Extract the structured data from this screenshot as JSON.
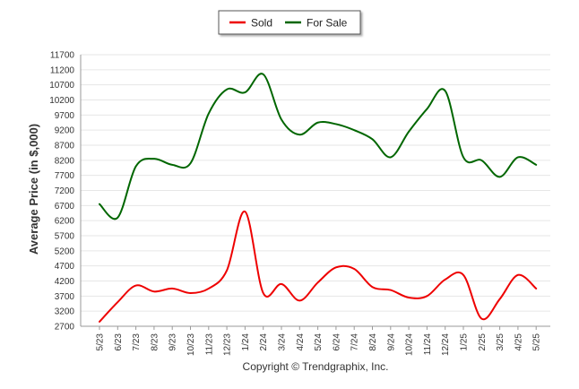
{
  "chart_data": {
    "type": "line",
    "title": "",
    "xlabel": "",
    "ylabel": "Average Price (in $,000)",
    "footer": "Copyright © Trendgraphix, Inc.",
    "legend_position": "top-center",
    "grid": true,
    "ylim": [
      2700,
      11700
    ],
    "y_ticks": [
      2700,
      3200,
      3700,
      4200,
      4700,
      5200,
      5700,
      6200,
      6700,
      7200,
      7700,
      8200,
      8700,
      9200,
      9700,
      10200,
      10700,
      11200,
      11700
    ],
    "categories": [
      "5/23",
      "6/23",
      "7/23",
      "8/23",
      "9/23",
      "10/23",
      "11/23",
      "12/23",
      "1/24",
      "2/24",
      "3/24",
      "4/24",
      "5/24",
      "6/24",
      "7/24",
      "8/24",
      "9/24",
      "10/24",
      "11/24",
      "12/24",
      "1/25",
      "2/25",
      "3/25",
      "4/25",
      "5/25"
    ],
    "series": [
      {
        "name": "Sold",
        "color": "#ee0000",
        "values": [
          2850,
          3500,
          4050,
          3850,
          3950,
          3800,
          3950,
          4550,
          6500,
          3800,
          4100,
          3550,
          4150,
          4650,
          4600,
          4000,
          3900,
          3650,
          3700,
          4250,
          4400,
          2950,
          3600,
          4400,
          3950
        ]
      },
      {
        "name": "For Sale",
        "color": "#006600",
        "values": [
          6750,
          6300,
          8000,
          8250,
          8050,
          8100,
          9750,
          10550,
          10450,
          11050,
          9550,
          9050,
          9450,
          9400,
          9200,
          8900,
          8300,
          9150,
          9900,
          10500,
          8300,
          8200,
          7650,
          8300,
          8050
        ]
      }
    ]
  }
}
